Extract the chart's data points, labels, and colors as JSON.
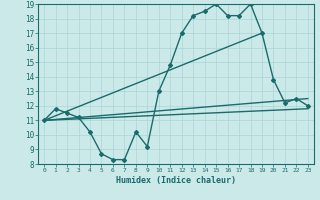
{
  "xlabel": "Humidex (Indice chaleur)",
  "xlim": [
    -0.5,
    23.5
  ],
  "ylim": [
    8,
    19
  ],
  "yticks": [
    8,
    9,
    10,
    11,
    12,
    13,
    14,
    15,
    16,
    17,
    18,
    19
  ],
  "xticks": [
    0,
    1,
    2,
    3,
    4,
    5,
    6,
    7,
    8,
    9,
    10,
    11,
    12,
    13,
    14,
    15,
    16,
    17,
    18,
    19,
    20,
    21,
    22,
    23
  ],
  "bg_color": "#cce9ea",
  "line_color": "#1a6b6b",
  "grid_color": "#aad4d6",
  "lines": [
    {
      "x": [
        0,
        1,
        2,
        3,
        4,
        5,
        6,
        7,
        8,
        9,
        10,
        11,
        12,
        13,
        14,
        15,
        16,
        17,
        18,
        19,
        20,
        21,
        22,
        23
      ],
      "y": [
        11,
        11.8,
        11.5,
        11.2,
        10.2,
        8.7,
        8.3,
        8.3,
        10.2,
        9.2,
        13.0,
        14.8,
        17.0,
        18.2,
        18.5,
        19.0,
        18.2,
        18.2,
        19.0,
        17.0,
        13.8,
        12.2,
        12.5,
        12.0
      ],
      "marker": "D",
      "markersize": 2.0,
      "lw": 1.0
    },
    {
      "x": [
        0,
        19
      ],
      "y": [
        11,
        17.0
      ],
      "marker": null,
      "markersize": 0,
      "lw": 1.0
    },
    {
      "x": [
        0,
        23
      ],
      "y": [
        11,
        12.5
      ],
      "marker": null,
      "markersize": 0,
      "lw": 1.0
    },
    {
      "x": [
        0,
        23
      ],
      "y": [
        11,
        11.8
      ],
      "marker": null,
      "markersize": 0,
      "lw": 1.0
    }
  ]
}
